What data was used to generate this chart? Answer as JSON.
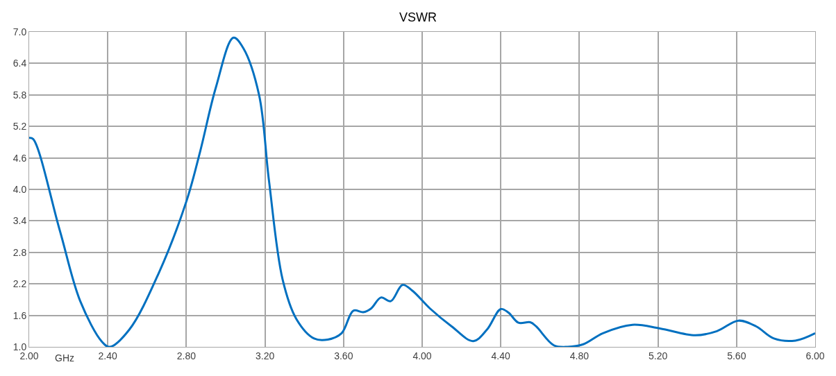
{
  "chart_data": {
    "type": "line",
    "title": "VSWR",
    "xlabel": "GHz",
    "xlim": [
      2.0,
      6.0
    ],
    "xticks": [
      {
        "value": 2.0,
        "label": "2.00"
      },
      {
        "value": 2.4,
        "label": "2.40"
      },
      {
        "value": 2.8,
        "label": "2.80"
      },
      {
        "value": 3.2,
        "label": "3.20"
      },
      {
        "value": 3.6,
        "label": "3.60"
      },
      {
        "value": 4.0,
        "label": "4.00"
      },
      {
        "value": 4.4,
        "label": "4.40"
      },
      {
        "value": 4.8,
        "label": "4.80"
      },
      {
        "value": 5.2,
        "label": "5.20"
      },
      {
        "value": 5.6,
        "label": "5.60"
      },
      {
        "value": 6.0,
        "label": "6.00"
      }
    ],
    "ylim": [
      1.0,
      7.0
    ],
    "yticks": [
      {
        "value": 1.0,
        "label": "1.0"
      },
      1.6,
      2.2,
      2.8,
      3.4,
      {
        "value": 4.0,
        "label": "4.0"
      },
      4.6,
      5.2,
      5.8,
      6.4,
      {
        "value": 7.0,
        "label": "7.0"
      }
    ],
    "grid": true,
    "marker": "none",
    "line_style": "solid",
    "x": [
      2.0,
      2.02,
      2.155,
      2.26,
      2.37,
      2.41,
      2.51,
      2.66,
      2.8,
      2.87,
      2.95,
      3.04,
      3.09,
      3.17,
      3.22,
      3.29,
      3.36,
      3.45,
      3.52,
      3.59,
      3.65,
      3.7,
      3.74,
      3.79,
      3.84,
      3.9,
      3.95,
      4.04,
      4.15,
      4.26,
      4.33,
      4.4,
      4.44,
      4.49,
      4.55,
      4.58,
      4.67,
      4.74,
      4.82,
      4.92,
      5.07,
      5.21,
      5.39,
      5.5,
      5.61,
      5.7,
      5.79,
      5.9,
      6.0
    ],
    "series": [
      {
        "color": "#0070c0",
        "values": [
          4.98,
          4.96,
          3.23,
          1.87,
          1.1,
          1.0,
          1.33,
          2.41,
          3.77,
          4.72,
          5.94,
          6.89,
          6.69,
          5.8,
          4.18,
          2.28,
          1.53,
          1.16,
          1.14,
          1.26,
          1.69,
          1.66,
          1.73,
          1.94,
          1.87,
          2.18,
          2.07,
          1.73,
          1.39,
          1.11,
          1.33,
          1.72,
          1.65,
          1.46,
          1.47,
          1.39,
          1.03,
          1.0,
          1.05,
          1.26,
          1.42,
          1.35,
          1.22,
          1.3,
          1.5,
          1.39,
          1.16,
          1.12,
          1.26
        ]
      }
    ]
  }
}
